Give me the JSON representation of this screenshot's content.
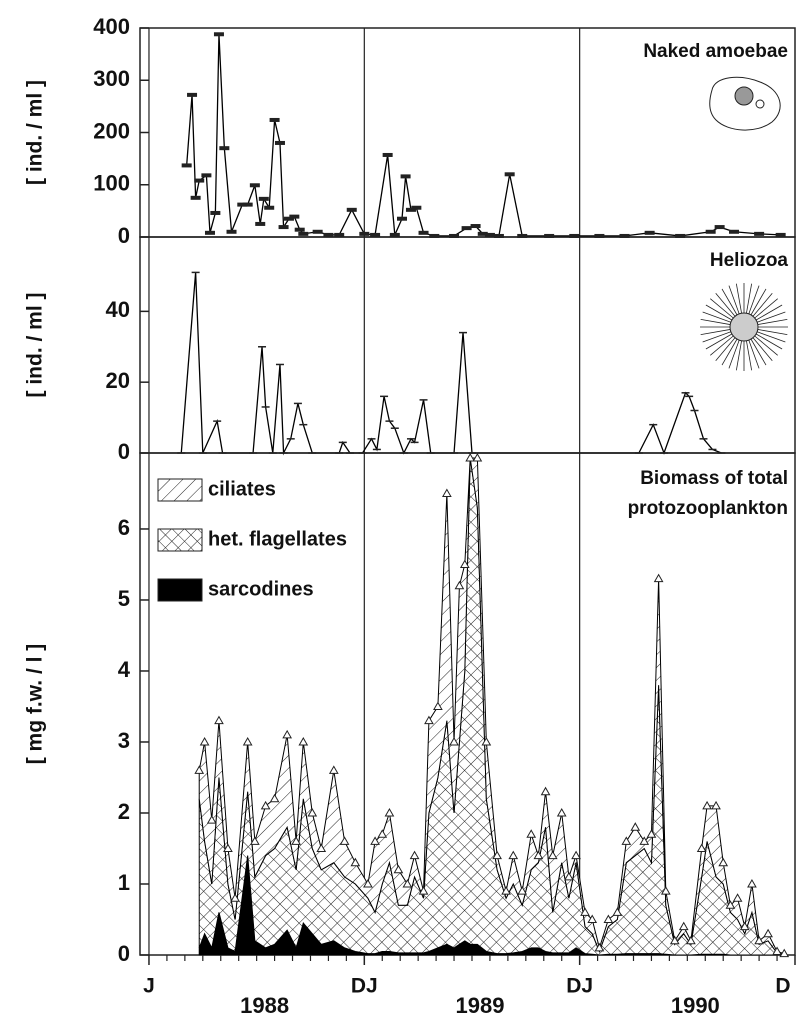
{
  "chart_data": [
    {
      "type": "line",
      "title": "Naked amoebae",
      "ylabel": "[ ind. / ml ]",
      "color": "#000000",
      "xlim": [
        -0.5,
        36
      ],
      "ylim": [
        0,
        400
      ],
      "yticks": [
        0,
        100,
        200,
        300,
        400
      ],
      "x": [
        2.1,
        2.4,
        2.6,
        2.8,
        3.2,
        3.4,
        3.7,
        3.9,
        4.2,
        4.6,
        5.2,
        5.5,
        5.9,
        6.2,
        6.4,
        6.7,
        7.0,
        7.3,
        7.5,
        7.8,
        8.1,
        8.4,
        8.6,
        9.4,
        10.0,
        10.6,
        11.3,
        12.0,
        12.6,
        13.3,
        13.7,
        14.1,
        14.3,
        14.6,
        14.9,
        15.3,
        15.9,
        17.0,
        17.7,
        18.2,
        18.6,
        19.0,
        19.5,
        20.1,
        20.8,
        22.3,
        23.7,
        25.1,
        26.5,
        27.9,
        29.6,
        31.3,
        31.8,
        32.6,
        34.0,
        35.2
      ],
      "values": [
        137,
        272,
        75,
        108,
        118,
        8,
        46,
        388,
        170,
        10,
        62,
        62,
        99,
        25,
        73,
        56,
        224,
        180,
        19,
        35,
        39,
        14,
        6,
        10,
        4,
        4,
        52,
        6,
        4,
        157,
        4,
        35,
        116,
        52,
        56,
        8,
        2,
        2,
        17,
        21,
        6,
        4,
        2,
        120,
        2,
        2,
        2,
        2,
        2,
        8,
        2,
        10,
        19,
        10,
        6,
        4
      ]
    },
    {
      "type": "line",
      "title": "Heliozoa",
      "ylabel": "[ ind. / ml ]",
      "color": "#000000",
      "xlim": [
        -0.5,
        36
      ],
      "ylim": [
        0,
        61
      ],
      "yticks": [
        0,
        20,
        40
      ],
      "x": [
        1.8,
        2.6,
        3.0,
        3.8,
        4.1,
        5.8,
        6.3,
        6.5,
        6.9,
        7.3,
        7.5,
        7.9,
        8.3,
        8.6,
        9.1,
        10.6,
        10.8,
        11.2,
        11.9,
        12.4,
        12.7,
        13.1,
        13.4,
        13.7,
        14.2,
        14.6,
        14.8,
        15.3,
        15.7,
        17.0,
        17.5,
        18.0,
        27.3,
        28.1,
        28.7,
        29.9,
        30.1,
        30.4,
        30.9,
        31.4,
        31.9
      ],
      "values": [
        0,
        51,
        0,
        9,
        0,
        0,
        30,
        13,
        0,
        25,
        0,
        4,
        14,
        8,
        0,
        0,
        3,
        0,
        0,
        4,
        1,
        16,
        9,
        7,
        0,
        4,
        3,
        15,
        0,
        0,
        34,
        0,
        0,
        8,
        0,
        17,
        16,
        12,
        4,
        1,
        0
      ]
    },
    {
      "type": "stacked_area",
      "title": [
        "Biomass of total",
        "protozooplankton"
      ],
      "ylabel": "[ mg f.w. / l ]",
      "xlim": [
        -0.5,
        36
      ],
      "ylim": [
        0,
        7.07
      ],
      "yticks": [
        0,
        1,
        2,
        3,
        4,
        5,
        6
      ],
      "xticks": [
        {
          "value": 0,
          "label": "J"
        },
        {
          "value": 12,
          "label": "DJ"
        },
        {
          "value": 24,
          "label": "DJ"
        },
        {
          "value": 36,
          "label": "D"
        }
      ],
      "xminorticks": [
        1,
        2,
        3,
        4,
        5,
        6,
        7,
        8,
        9,
        10,
        11,
        13,
        14,
        15,
        16,
        17,
        18,
        19,
        20,
        21,
        22,
        23,
        25,
        26,
        27,
        28,
        29,
        30,
        31,
        32,
        33,
        34,
        35
      ],
      "year_labels": [
        {
          "value": 6,
          "label": "1988"
        },
        {
          "value": 18,
          "label": "1989"
        },
        {
          "value": 30,
          "label": "1990"
        }
      ],
      "x": [
        2.8,
        3.1,
        3.5,
        3.9,
        4.4,
        4.8,
        5.5,
        5.9,
        6.5,
        7.0,
        7.7,
        8.2,
        8.6,
        9.1,
        9.6,
        10.3,
        10.9,
        11.5,
        12.2,
        12.6,
        13.0,
        13.4,
        13.9,
        14.4,
        14.8,
        15.3,
        15.6,
        16.1,
        16.6,
        17.0,
        17.3,
        17.6,
        17.9,
        18.3,
        18.8,
        19.4,
        19.9,
        20.3,
        20.8,
        21.3,
        21.7,
        22.1,
        22.5,
        23.0,
        23.4,
        23.8,
        24.3,
        24.7,
        25.1,
        25.6,
        26.1,
        26.6,
        27.1,
        27.6,
        28.0,
        28.4,
        28.8,
        29.3,
        29.8,
        30.2,
        30.8,
        31.1,
        31.6,
        32.0,
        32.4,
        32.8,
        33.2,
        33.6,
        34.0,
        34.5,
        35.0,
        35.4
      ],
      "series": [
        {
          "name": "sarcodines",
          "color": "#000000",
          "fill": "solid",
          "values": [
            0.1,
            0.3,
            0.1,
            0.6,
            0.1,
            0.05,
            1.4,
            0.2,
            0.1,
            0.15,
            0.35,
            0.1,
            0.45,
            0.3,
            0.15,
            0.2,
            0.1,
            0.05,
            0.02,
            0.02,
            0.05,
            0.05,
            0.03,
            0.03,
            0.03,
            0.03,
            0.05,
            0.1,
            0.15,
            0.1,
            0.15,
            0.2,
            0.15,
            0.15,
            0.05,
            0.02,
            0.02,
            0.03,
            0.05,
            0.1,
            0.1,
            0.05,
            0.03,
            0.03,
            0.03,
            0.1,
            0.02,
            0.01,
            0,
            0.01,
            0.01,
            0.02,
            0.02,
            0.02,
            0.02,
            0.02,
            0.01,
            0,
            0,
            0,
            0.01,
            0.01,
            0.01,
            0.01,
            0,
            0,
            0,
            0,
            0,
            0,
            0,
            0
          ]
        },
        {
          "name": "het. flagellates",
          "color": "#000000",
          "fill": "crosshatch",
          "values": [
            2.1,
            1.3,
            0.9,
            1.9,
            0.9,
            0.45,
            0.9,
            0.9,
            1.3,
            1.35,
            1.45,
            1.1,
            1.75,
            1.2,
            1.05,
            1.1,
            1.0,
            0.95,
            0.78,
            0.58,
            0.95,
            1.25,
            0.67,
            0.67,
            1.07,
            0.77,
            1.95,
            2.4,
            3.15,
            1.9,
            2.85,
            3.8,
            6.85,
            6.15,
            2.15,
            1.18,
            0.78,
            0.97,
            0.65,
            1.1,
            1.2,
            1.75,
            0.57,
            1.27,
            0.77,
            1.2,
            0.38,
            0.29,
            0.05,
            0.39,
            0.49,
            1.28,
            1.38,
            1.48,
            1.28,
            3.78,
            0.69,
            0.15,
            0.3,
            0.15,
            1.09,
            1.59,
            1.09,
            0.99,
            0.6,
            0.5,
            0.3,
            0.6,
            0.15,
            0.2,
            0.03,
            0.02
          ]
        },
        {
          "name": "ciliates",
          "color": "#000000",
          "fill": "hatch",
          "values": [
            0.4,
            1.4,
            0.9,
            0.8,
            0.5,
            0.3,
            0.7,
            0.5,
            0.7,
            0.7,
            1.3,
            0.4,
            0.8,
            0.5,
            0.3,
            1.3,
            0.5,
            0.3,
            0.2,
            1.0,
            0.7,
            0.7,
            0.5,
            0.3,
            0.3,
            0.1,
            1.3,
            1.0,
            3.2,
            1.0,
            2.2,
            1.5,
            0,
            0.7,
            0.8,
            0.2,
            0.1,
            0.4,
            0.2,
            0.5,
            0.1,
            0.5,
            0.8,
            0.7,
            0.3,
            0.1,
            0.2,
            0.2,
            0.05,
            0.1,
            0.1,
            0.3,
            0.4,
            0.1,
            0.4,
            1.5,
            0.2,
            0.05,
            0.1,
            0.05,
            0.4,
            0.5,
            1.0,
            0.3,
            0.1,
            0.3,
            0.1,
            0.4,
            0.05,
            0.1,
            0.02,
            0
          ]
        }
      ]
    }
  ]
}
